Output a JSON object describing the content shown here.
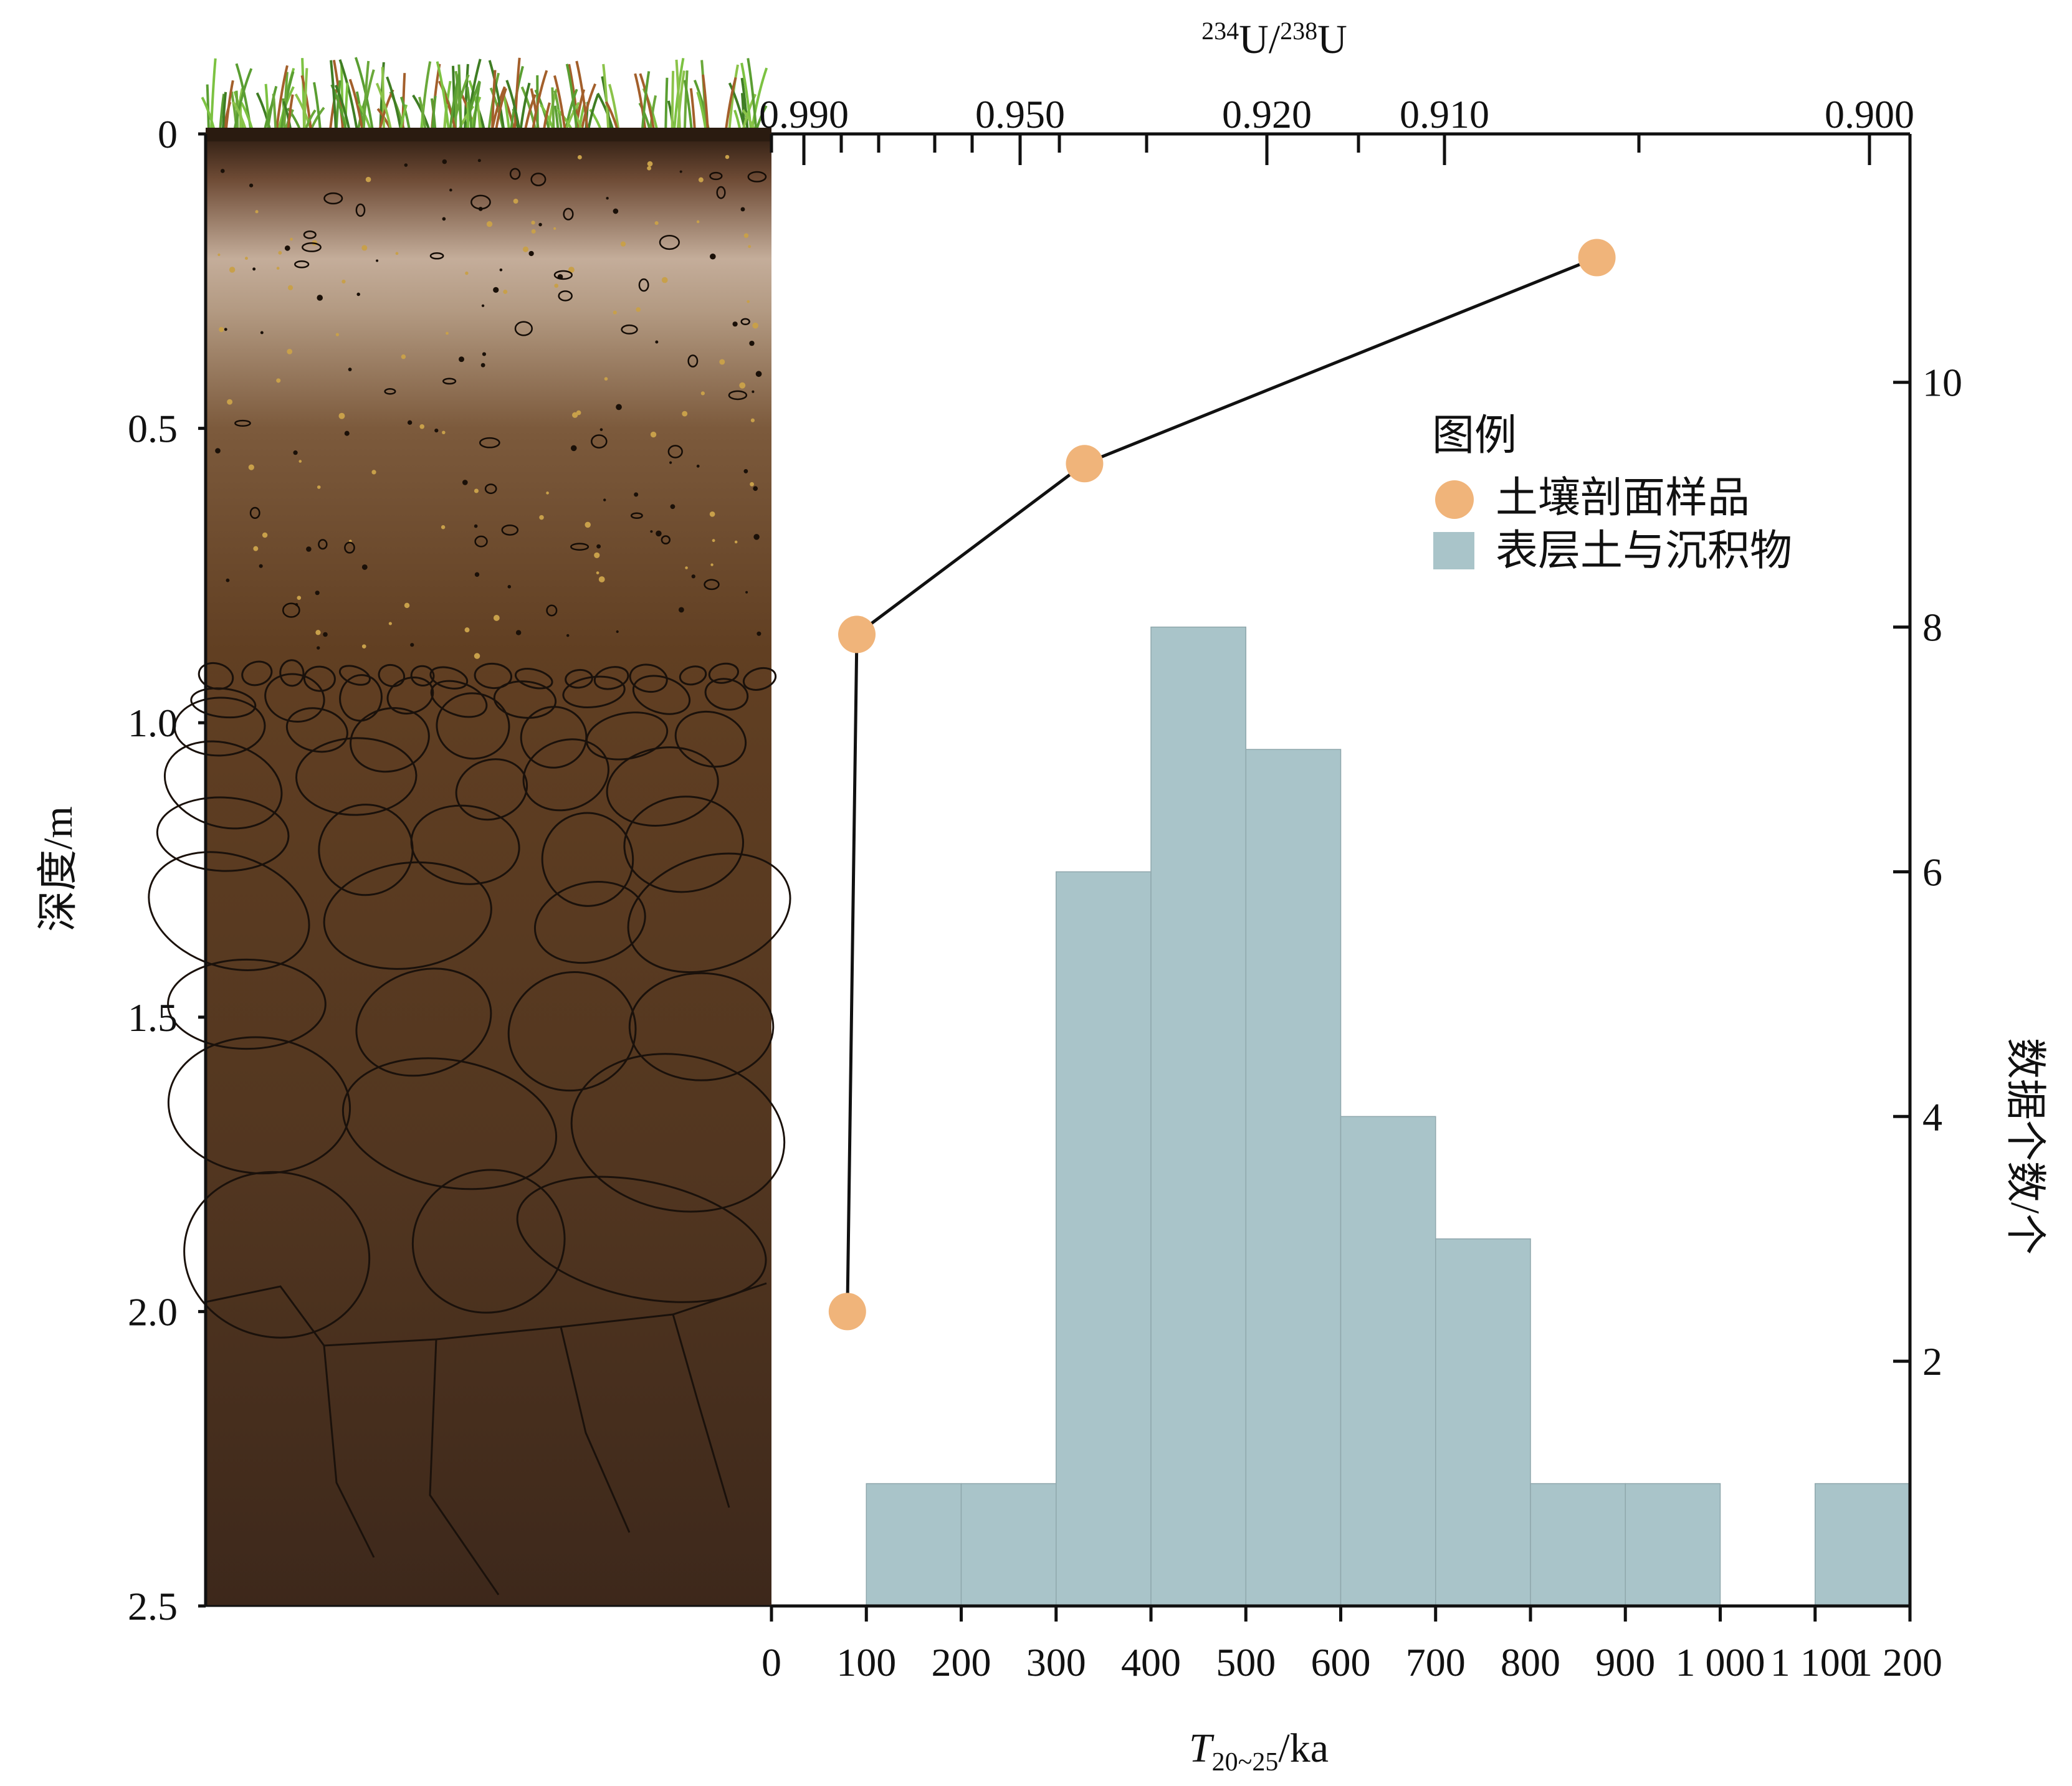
{
  "chart_data": {
    "type": "histogram+line",
    "top_axis": {
      "label_parts": [
        "234",
        "U/",
        "238",
        "U"
      ],
      "ticks": [
        "0.990",
        "0.950",
        "0.920",
        "0.910",
        "0.900"
      ],
      "tick_values": [
        0.99,
        0.95,
        0.92,
        0.91,
        0.9
      ]
    },
    "left_axis": {
      "label": "深度/m",
      "ticks": [
        "0",
        "0.5",
        "1.0",
        "1.5",
        "2.0",
        "2.5"
      ],
      "tick_values": [
        0,
        0.5,
        1.0,
        1.5,
        2.0,
        2.5
      ],
      "range": [
        0,
        2.5
      ]
    },
    "right_axis": {
      "label": "数据个数/个",
      "ticks": [
        "2",
        "4",
        "6",
        "8",
        "10"
      ],
      "tick_values": [
        2,
        4,
        6,
        8,
        10
      ],
      "range": [
        0,
        12.03
      ]
    },
    "bottom_axis": {
      "label_parts": [
        "T",
        "20~25",
        "/ka"
      ],
      "ticks": [
        "0",
        "100",
        "200",
        "300",
        "400",
        "500",
        "600",
        "700",
        "800",
        "900",
        "1 000",
        "1 100",
        "1 200"
      ],
      "tick_values": [
        0,
        100,
        200,
        300,
        400,
        500,
        600,
        700,
        800,
        900,
        1000,
        1100,
        1200
      ],
      "range": [
        0,
        1200
      ]
    },
    "legend": {
      "title": "图例",
      "items": [
        {
          "label": "土壤剖面样品",
          "color": "#f0b47a",
          "shape": "circle"
        },
        {
          "label": "表层土与沉积物",
          "color": "#a9c4c9",
          "shape": "square"
        }
      ]
    },
    "series": [
      {
        "type": "line",
        "name": "土壤剖面样品",
        "color": "#f0b47a",
        "points": [
          {
            "ka": 80,
            "depth_m": 2.0
          },
          {
            "ka": 90,
            "depth_m": 0.85
          },
          {
            "ka": 330,
            "depth_m": 0.56
          },
          {
            "ka": 870,
            "depth_m": 0.21
          }
        ]
      },
      {
        "type": "bar",
        "name": "表层土与沉积物",
        "color": "#a9c4c9",
        "bins": [
          {
            "from": 100,
            "to": 200,
            "count": 1
          },
          {
            "from": 200,
            "to": 300,
            "count": 1
          },
          {
            "from": 300,
            "to": 400,
            "count": 6
          },
          {
            "from": 400,
            "to": 500,
            "count": 8
          },
          {
            "from": 500,
            "to": 600,
            "count": 7
          },
          {
            "from": 600,
            "to": 700,
            "count": 4
          },
          {
            "from": 700,
            "to": 800,
            "count": 3
          },
          {
            "from": 800,
            "to": 900,
            "count": 1
          },
          {
            "from": 900,
            "to": 1000,
            "count": 1
          },
          {
            "from": 1100,
            "to": 1200,
            "count": 1
          }
        ]
      }
    ]
  }
}
